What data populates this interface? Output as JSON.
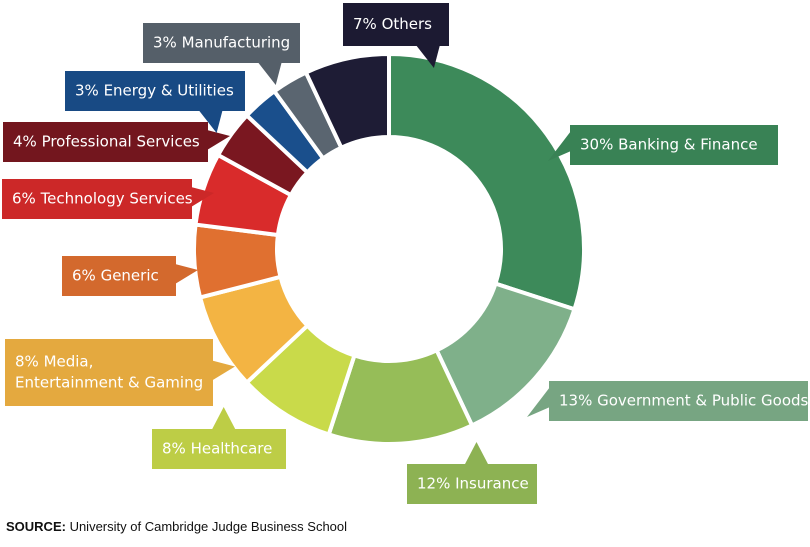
{
  "chart_data": {
    "type": "pie",
    "variant": "donut",
    "title": "",
    "slices": [
      {
        "label": "30% Banking & Finance",
        "value": 30,
        "color": "#3d8a5a"
      },
      {
        "label": "13% Government & Public Goods",
        "value": 13,
        "color": "#7fb08a"
      },
      {
        "label": "12% Insurance",
        "value": 12,
        "color": "#96bd58"
      },
      {
        "label": "8% Healthcare",
        "value": 8,
        "color": "#c9da4a"
      },
      {
        "label": "8% Media,\nEntertainment & Gaming",
        "value": 8,
        "color": "#f3b443"
      },
      {
        "label": "6% Generic",
        "value": 6,
        "color": "#e07030"
      },
      {
        "label": "6% Technology Services",
        "value": 6,
        "color": "#d92b2b"
      },
      {
        "label": "4% Professional Services",
        "value": 4,
        "color": "#7a1720"
      },
      {
        "label": "3% Energy & Utilities",
        "value": 3,
        "color": "#1a4f8c"
      },
      {
        "label": "3% Manufacturing",
        "value": 3,
        "color": "#5a6570"
      },
      {
        "label": "7% Others",
        "value": 7,
        "color": "#1e1c35"
      }
    ]
  },
  "source": {
    "prefix": "SOURCE:",
    "text": " University of Cambridge Judge Business School"
  }
}
